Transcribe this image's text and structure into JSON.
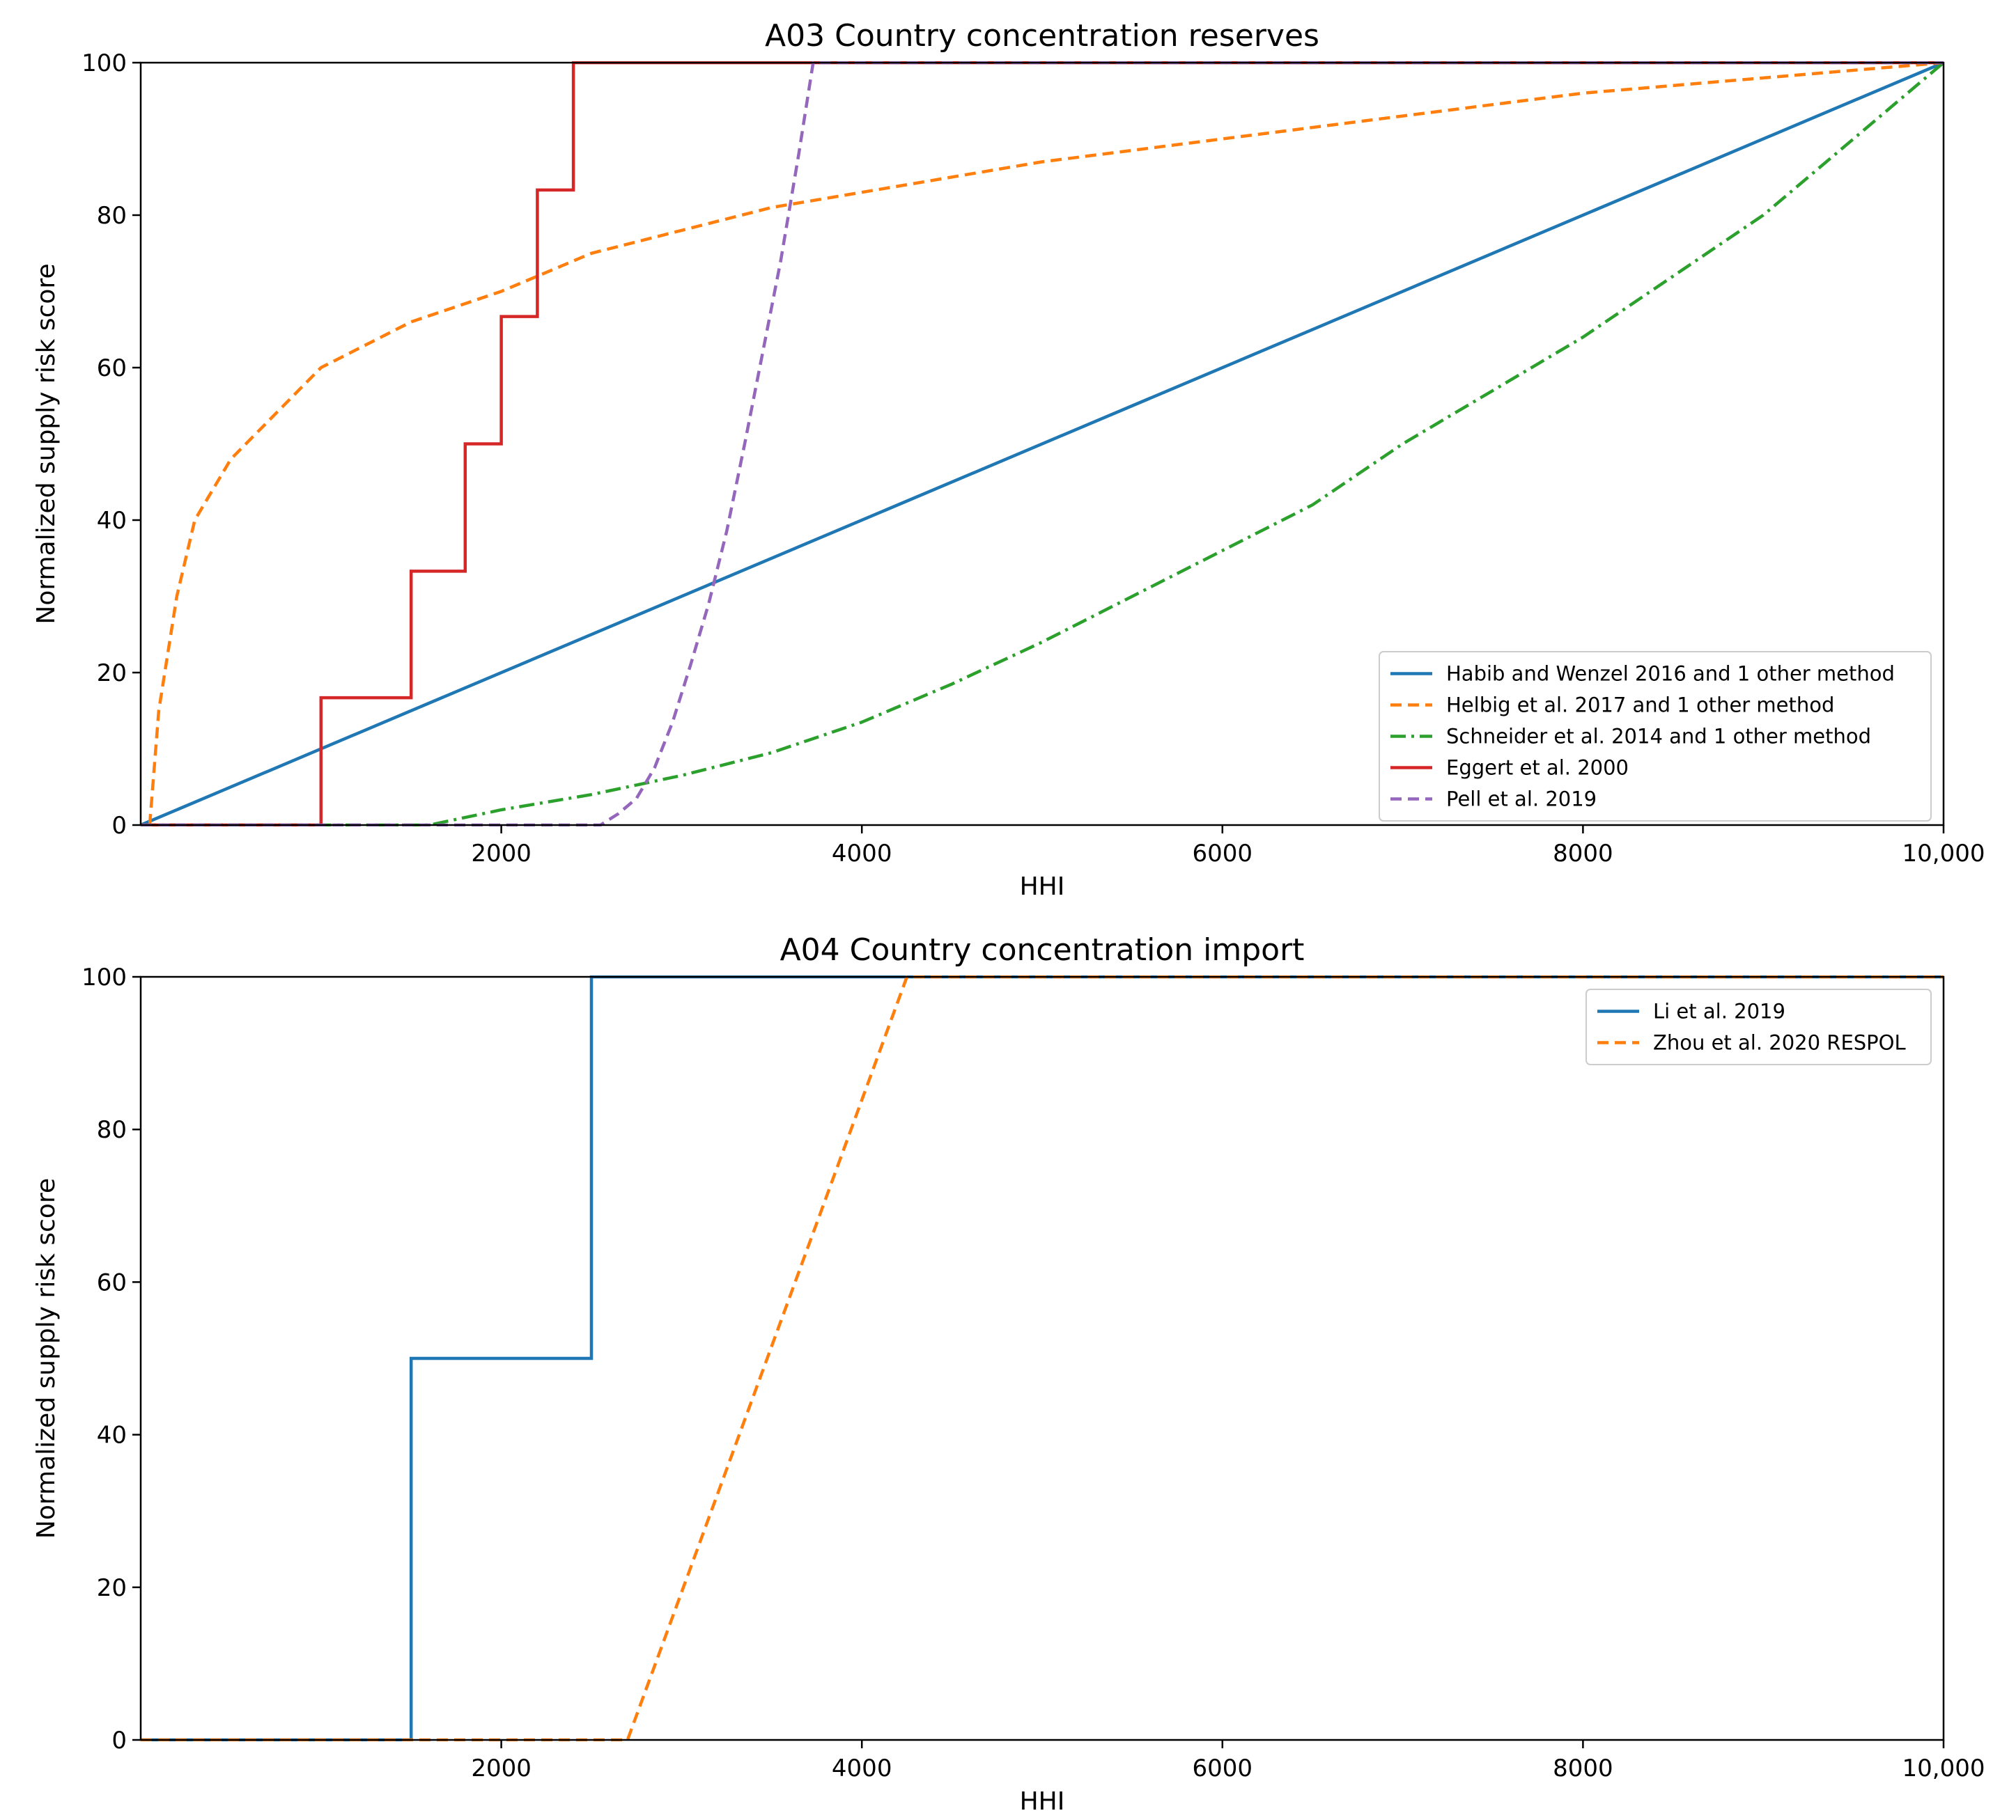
{
  "chart_data": [
    {
      "type": "line",
      "title": "A03 Country concentration reserves",
      "xlabel": "HHI",
      "ylabel": "Normalized supply risk score",
      "xlim": [
        0,
        10000
      ],
      "ylim": [
        0,
        100
      ],
      "xticks": [
        "2000",
        "4000",
        "6000",
        "8000",
        "10,000"
      ],
      "yticks": [
        "0",
        "20",
        "40",
        "60",
        "80",
        "100"
      ],
      "grid": false,
      "legend_position": "lower-right",
      "series": [
        {
          "name": "Habib and Wenzel 2016 and 1 other method",
          "color": "#1f77b4",
          "style": "solid",
          "x": [
            0,
            10000
          ],
          "y": [
            0,
            100
          ]
        },
        {
          "name": "Helbig et al. 2017 and 1 other method",
          "color": "#ff7f0e",
          "style": "dashed",
          "x": [
            50,
            100,
            200,
            300,
            500,
            750,
            1000,
            1500,
            2000,
            2500,
            3000,
            3500,
            4000,
            5000,
            6000,
            7000,
            8000,
            9000,
            10000
          ],
          "y": [
            0,
            15,
            30,
            40,
            48,
            54,
            60,
            66,
            70,
            75,
            78,
            81,
            83,
            87,
            90,
            93,
            96,
            98,
            100
          ]
        },
        {
          "name": "Schneider et al. 2014 and 1 other method",
          "color": "#2ca02c",
          "style": "dashdot",
          "x": [
            0,
            1600,
            2000,
            2500,
            3000,
            3500,
            4000,
            4500,
            5000,
            5500,
            6000,
            6500,
            7000,
            7500,
            8000,
            8500,
            9000,
            9500,
            10000
          ],
          "y": [
            0,
            0,
            2,
            4,
            6.5,
            9.5,
            13.5,
            18.5,
            24,
            30,
            36,
            42,
            50,
            57,
            64,
            72,
            80,
            90,
            100
          ]
        },
        {
          "name": "Eggert et al. 2000",
          "color": "#d62728",
          "style": "step",
          "x": [
            0,
            1000,
            1000,
            1500,
            1500,
            1800,
            1800,
            2000,
            2000,
            2200,
            2200,
            2400,
            2400,
            10000
          ],
          "y": [
            0,
            0,
            16.7,
            16.7,
            33.3,
            33.3,
            50,
            50,
            66.7,
            66.7,
            83.3,
            83.3,
            100,
            100
          ]
        },
        {
          "name": "Pell et al. 2019",
          "color": "#9467bd",
          "style": "dashed",
          "x": [
            0,
            2550,
            2650,
            2750,
            2850,
            2950,
            3050,
            3150,
            3250,
            3350,
            3450,
            3550,
            3650,
            3730,
            10000
          ],
          "y": [
            0,
            0,
            1.5,
            3.5,
            7.5,
            13.5,
            21,
            29,
            38.5,
            50,
            62,
            74,
            88,
            100,
            100
          ]
        }
      ]
    },
    {
      "type": "line",
      "title": "A04 Country concentration import",
      "xlabel": "HHI",
      "ylabel": "Normalized supply risk score",
      "xlim": [
        0,
        10000
      ],
      "ylim": [
        0,
        100
      ],
      "xticks": [
        "2000",
        "4000",
        "6000",
        "8000",
        "10,000"
      ],
      "yticks": [
        "0",
        "20",
        "40",
        "60",
        "80",
        "100"
      ],
      "grid": false,
      "legend_position": "upper-right",
      "series": [
        {
          "name": "Li et al. 2019",
          "color": "#1f77b4",
          "style": "step",
          "x": [
            0,
            1500,
            1500,
            2500,
            2500,
            10000
          ],
          "y": [
            0,
            0,
            50,
            50,
            100,
            100
          ]
        },
        {
          "name": "Zhou et al. 2020 RESPOL",
          "color": "#ff7f0e",
          "style": "dashed",
          "x": [
            0,
            2700,
            4250,
            10000
          ],
          "y": [
            0,
            0,
            100,
            100
          ]
        }
      ]
    }
  ]
}
